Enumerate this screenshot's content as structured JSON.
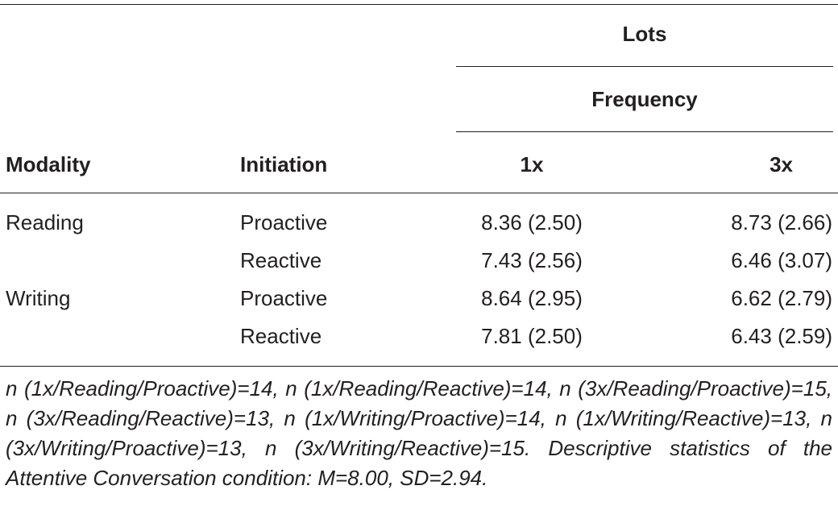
{
  "table": {
    "header": {
      "group_top": "Lots",
      "group_sub": "Frequency",
      "modality": "Modality",
      "initiation": "Initiation",
      "col_1x": "1x",
      "col_3x": "3x"
    },
    "rows": [
      {
        "modality": "Reading",
        "initiation": "Proactive",
        "v1x": "8.36 (2.50)",
        "v3x": "8.73 (2.66)"
      },
      {
        "modality": "",
        "initiation": "Reactive",
        "v1x": "7.43 (2.56)",
        "v3x": "6.46 (3.07)"
      },
      {
        "modality": "Writing",
        "initiation": "Proactive",
        "v1x": "8.64 (2.95)",
        "v3x": "6.62 (2.79)"
      },
      {
        "modality": "",
        "initiation": "Reactive",
        "v1x": "7.81 (2.50)",
        "v3x": "6.43 (2.59)"
      }
    ],
    "footnote": "n (1x/Reading/Proactive)=14, n (1x/Reading/Reactive)=14, n (3x/Reading/Proactive)=15, n (3x/Reading/Reactive)=13, n (1x/Writing/Proactive)=14, n (1x/Writing/Reactive)=13, n (3x/Writing/Proactive)=13, n (3x/Writing/Reactive)=15. Descriptive statistics of the Attentive Conversation condition: M=8.00, SD=2.94."
  }
}
